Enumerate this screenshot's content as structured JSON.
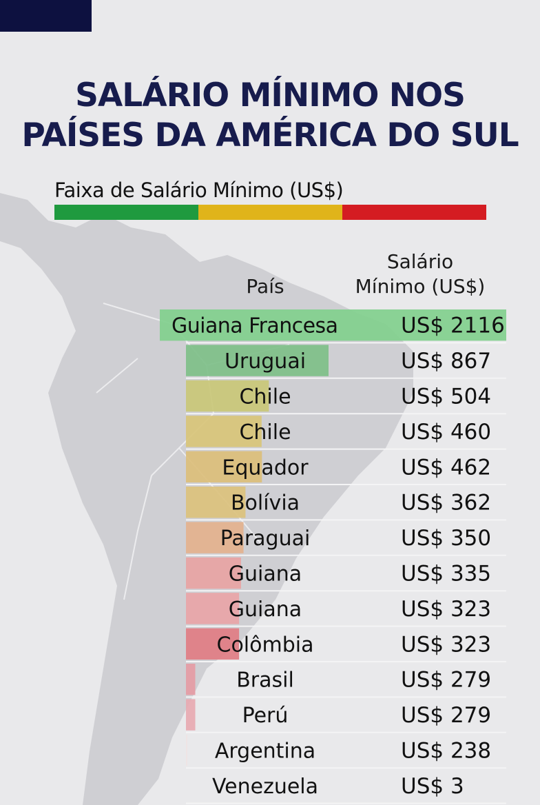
{
  "header": {
    "title_line1": "SALÁRIO MÍNIMO NOS",
    "title_line2": "PAÍSES DA AMÉRICA DO SUL"
  },
  "scale": {
    "label": "Faixa de Salário Mínimo (US$)",
    "colors": [
      "#1f9a3f",
      "#e0b41a",
      "#d41c22"
    ]
  },
  "table_headers": {
    "country": "País",
    "wage_line1": "Salário",
    "wage_line2": "Mínimo (US$)"
  },
  "chart_data": {
    "type": "bar",
    "title": "SALÁRIO MÍNIMO NOS PAÍSES DA AMÉRICA DO SUL",
    "categories": [
      "Guiana Francesa",
      "Uruguai",
      "Chile",
      "Chile",
      "Equador",
      "Bolívia",
      "Paraguai",
      "Guiana",
      "Guiana",
      "Colômbia",
      "Brasil",
      "Perú",
      "Argentina",
      "Venezuela"
    ],
    "values": [
      2116,
      867,
      504,
      460,
      462,
      362,
      350,
      335,
      323,
      323,
      279,
      279,
      238,
      3
    ],
    "value_labels": [
      "US$ 2116",
      "US$ 867",
      "US$ 504",
      "US$ 460",
      "US$ 462",
      "US$ 362",
      "US$ 350",
      "US$ 335",
      "US$ 323",
      "US$ 323",
      "US$ 279",
      "US$ 279",
      "US$ 238",
      "US$ 3"
    ],
    "bar_colors": [
      "#7fcf8c",
      "#7cbf86",
      "#c9c776",
      "#d8c477",
      "#dcbe78",
      "#dcc17a",
      "#e3b08c",
      "#e8a2a2",
      "#e9a3a6",
      "#e07a82",
      "#e49aa3",
      "#e8a9b0",
      "#efe3e3",
      "#e9e9eb"
    ],
    "xlabel": "País",
    "ylabel": "Salário Mínimo (US$)"
  }
}
